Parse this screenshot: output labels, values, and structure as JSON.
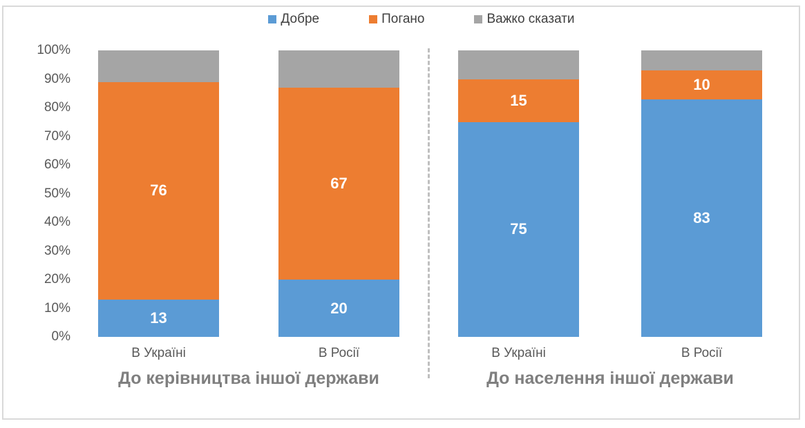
{
  "chart_data": {
    "type": "bar",
    "stacked": true,
    "grid": false,
    "legend_position": "top",
    "ylim": [
      0,
      100
    ],
    "yticks": [
      "0%",
      "10%",
      "20%",
      "30%",
      "40%",
      "50%",
      "60%",
      "70%",
      "80%",
      "90%",
      "100%"
    ],
    "groups": [
      {
        "title": "До керівництва іншої держави",
        "categories": [
          "В Україні",
          "В Росії"
        ]
      },
      {
        "title": "До населення іншої держави",
        "categories": [
          "В Україні",
          "В Росії"
        ]
      }
    ],
    "series": [
      {
        "name": "Добре",
        "color": "#5B9BD5",
        "values": [
          13,
          20,
          75,
          83
        ],
        "labels": [
          "13",
          "20",
          "75",
          "83"
        ]
      },
      {
        "name": "Погано",
        "color": "#ED7D31",
        "values": [
          76,
          67,
          15,
          10
        ],
        "labels": [
          "76",
          "67",
          "15",
          "10"
        ]
      },
      {
        "name": "Важко сказати",
        "color": "#A5A5A5",
        "values": [
          11,
          13,
          10,
          7
        ],
        "labels": [
          null,
          null,
          null,
          null
        ]
      }
    ],
    "divider": {
      "style": "dashed",
      "color": "#BFBFBF"
    },
    "frame_color": "#D9D9D9",
    "tick_color": "#595959",
    "title_color": "#7F7F7F"
  }
}
